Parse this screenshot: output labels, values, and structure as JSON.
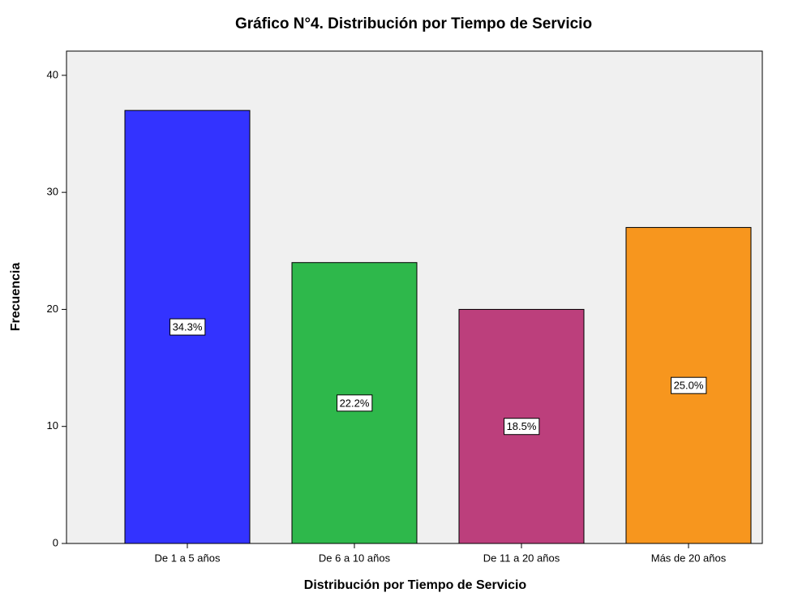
{
  "chart_data": {
    "type": "bar",
    "title": "Gráfico N°4. Distribución por Tiempo de Servicio",
    "x_label": "Distribución por Tiempo de Servicio",
    "y_label": "Frecuencia",
    "categories": [
      "De 1 a 5 años",
      "De 6 a 10 años",
      "De 11 a 20 años",
      "Más de 20 años"
    ],
    "values": [
      37,
      24,
      20,
      27
    ],
    "percent_labels": [
      "34.3%",
      "22.2%",
      "18.5%",
      "25.0%"
    ],
    "colors": [
      "#3333ff",
      "#2eb84b",
      "#bc3f7c",
      "#f7961e"
    ],
    "ylim": [
      0,
      42
    ],
    "yticks": [
      0,
      10,
      20,
      30,
      40
    ],
    "grid": false
  }
}
